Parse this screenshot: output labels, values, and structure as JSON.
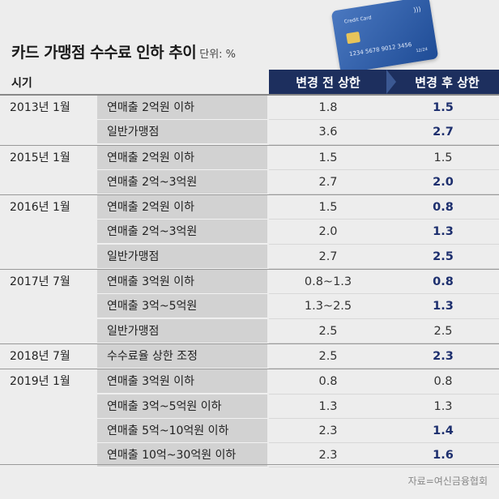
{
  "title": "카드 가맹점 수수료 인하 추이",
  "unit": "단위: %",
  "card": {
    "label": "Credit Card",
    "number": "1234   5678   9012   3456",
    "expiry": "12/24"
  },
  "header": {
    "period": "시기",
    "before": "변경 전 상한",
    "after": "변경 후 상한"
  },
  "rows": [
    {
      "period": "2013년 1월",
      "category": "연매출 2억원 이하",
      "before": "1.8",
      "after": "1.5",
      "changed": true
    },
    {
      "period": "",
      "category": "일반가맹점",
      "before": "3.6",
      "after": "2.7",
      "changed": true
    },
    {
      "period": "2015년 1월",
      "category": "연매출 2억원 이하",
      "before": "1.5",
      "after": "1.5",
      "changed": false
    },
    {
      "period": "",
      "category": "연매출 2억~3억원",
      "before": "2.7",
      "after": "2.0",
      "changed": true
    },
    {
      "period": "2016년 1월",
      "category": "연매출 2억원 이하",
      "before": "1.5",
      "after": "0.8",
      "changed": true
    },
    {
      "period": "",
      "category": "연매출 2억~3억원",
      "before": "2.0",
      "after": "1.3",
      "changed": true
    },
    {
      "period": "",
      "category": "일반가맹점",
      "before": "2.7",
      "after": "2.5",
      "changed": true
    },
    {
      "period": "2017년 7월",
      "category": "연매출 3억원 이하",
      "before": "0.8~1.3",
      "after": "0.8",
      "changed": true
    },
    {
      "period": "",
      "category": "연매출 3억~5억원",
      "before": "1.3~2.5",
      "after": "1.3",
      "changed": true
    },
    {
      "period": "",
      "category": "일반가맹점",
      "before": "2.5",
      "after": "2.5",
      "changed": false
    },
    {
      "period": "2018년 7월",
      "category": "수수료율 상한 조정",
      "before": "2.5",
      "after": "2.3",
      "changed": true
    },
    {
      "period": "2019년 1월",
      "category": "연매출 3억원 이하",
      "before": "0.8",
      "after": "0.8",
      "changed": false
    },
    {
      "period": "",
      "category": "연매출 3억~5억원 이하",
      "before": "1.3",
      "after": "1.3",
      "changed": false
    },
    {
      "period": "",
      "category": "연매출 5억~10억원 이하",
      "before": "2.3",
      "after": "1.4",
      "changed": true
    },
    {
      "period": "",
      "category": "연매출 10억~30억원 이하",
      "before": "2.3",
      "after": "1.6",
      "changed": true
    }
  ],
  "source": "자료=여신금융협회"
}
